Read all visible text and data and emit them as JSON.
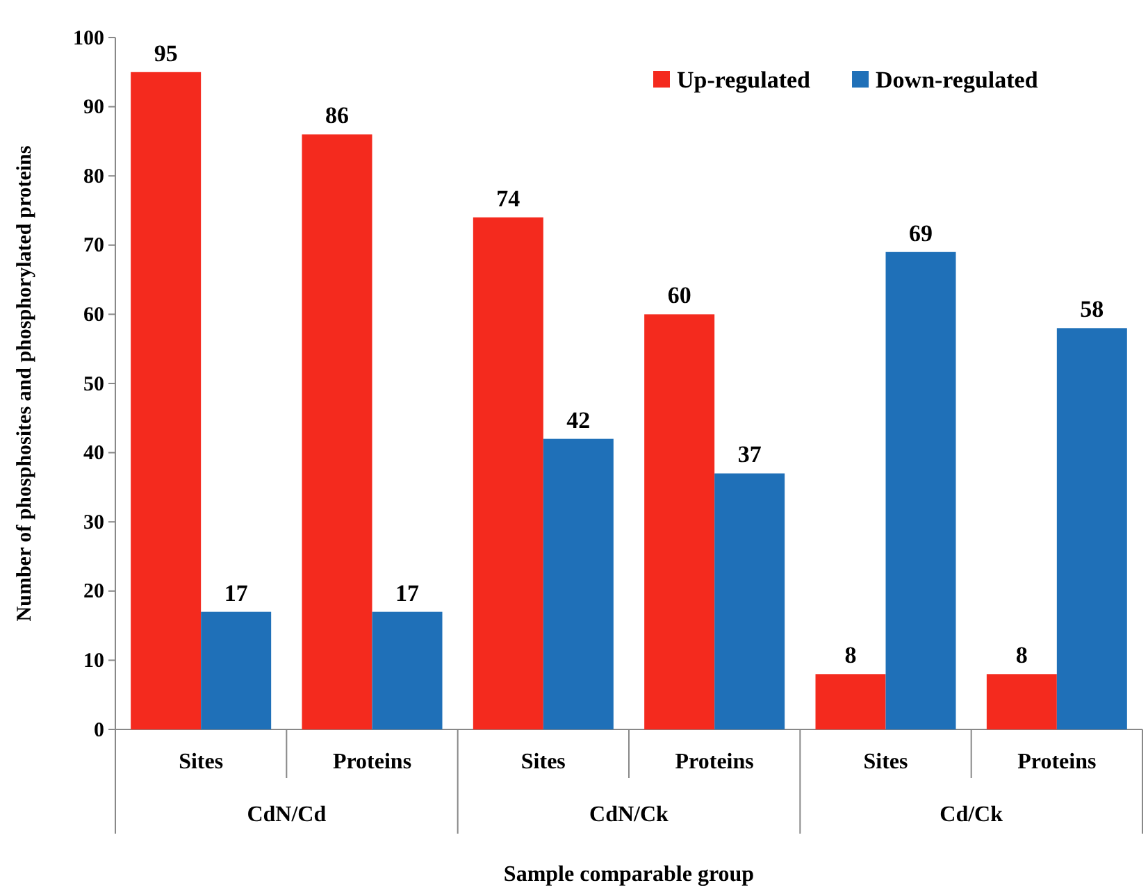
{
  "chart_data": {
    "type": "bar",
    "xlabel": "Sample comparable group",
    "ylabel": "Number of phosphosites and phosphorylated proteins",
    "categories": [
      "Sites",
      "Proteins",
      "Sites",
      "Proteins",
      "Sites",
      "Proteins"
    ],
    "annotations": [
      "CdN/Cd",
      "CdN/Ck",
      "Cd/Ck"
    ],
    "series": [
      {
        "name": "Up-regulated",
        "color": "#f42a1e",
        "values": [
          95,
          86,
          74,
          60,
          8,
          8
        ]
      },
      {
        "name": "Down-regulated",
        "color": "#1f70b8",
        "values": [
          17,
          17,
          42,
          37,
          69,
          58
        ]
      }
    ],
    "ylim": [
      0,
      100
    ],
    "yticks": [
      0,
      10,
      20,
      30,
      40,
      50,
      60,
      70,
      80,
      90,
      100
    ],
    "grid": false,
    "legend": "top right",
    "data_labels": true
  }
}
